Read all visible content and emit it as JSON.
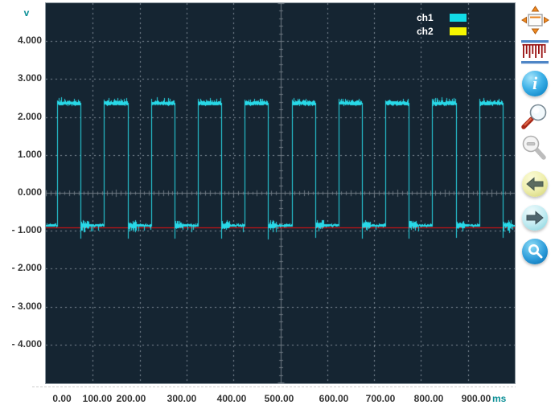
{
  "axes": {
    "y_unit": "v",
    "x_unit": "ms",
    "y_tick_labels": [
      "4.000",
      "3.000",
      "2.000",
      "1.000",
      "0.000",
      "- 1.000",
      "- 2.000",
      "- 3.000",
      "- 4.000"
    ],
    "y_tick_values": [
      4,
      3,
      2,
      1,
      0,
      -1,
      -2,
      -3,
      -4
    ],
    "x_tick_labels": [
      "0.00",
      "100.00",
      "200.00",
      "300.00",
      "400.00",
      "500.00",
      "600.00",
      "700.00",
      "800.00",
      "900.00"
    ],
    "x_tick_values": [
      0,
      100,
      200,
      300,
      400,
      500,
      600,
      700,
      800,
      900
    ]
  },
  "legend": {
    "items": [
      {
        "label": "ch1",
        "swatch_color": "#12dce8"
      },
      {
        "label": "ch2",
        "swatch_color": "#f6f600"
      }
    ]
  },
  "toolbar": {
    "icons": [
      {
        "name": "pan-window-icon"
      },
      {
        "name": "signal-samples-icon"
      },
      {
        "name": "info-icon",
        "glyph": "i"
      },
      {
        "name": "zoom-in-icon"
      },
      {
        "name": "zoom-out-icon"
      },
      {
        "name": "back-arrow-icon"
      },
      {
        "name": "forward-arrow-icon"
      },
      {
        "name": "search-zoom-icon"
      }
    ]
  },
  "chart_data": {
    "type": "line",
    "title": "",
    "xlabel": "ms",
    "ylabel": "v",
    "x_axis": {
      "range": [
        0,
        1000
      ],
      "ticks": [
        0,
        100,
        200,
        300,
        400,
        500,
        600,
        700,
        800,
        900
      ]
    },
    "y_axis": {
      "range": [
        -5,
        5
      ],
      "ticks": [
        4,
        3,
        2,
        1,
        0,
        -1,
        -2,
        -3,
        -4
      ]
    },
    "grid": {
      "style": "dashed",
      "color": "#97a1ab",
      "center_axes": "solid-with-ticks",
      "axis_color": "#6f7a84"
    },
    "plot_background": "#152532",
    "legend_position": "top-right-inside",
    "series": [
      {
        "name": "ch1",
        "display_color": "#28d9e8",
        "legend_color": "#12dce8",
        "waveform": "square",
        "period_ms": 100,
        "rise_at_ms": 25,
        "fall_at_ms": 75,
        "high_v": 2.36,
        "low_v": -0.86,
        "fall_undershoot_v": -1.18,
        "high_noise_vpp": 0.1,
        "low_noise_vpp": 0.06,
        "post_fall_noise_vpp": 0.2
      },
      {
        "name": "ch2",
        "display_color": "#f01010",
        "legend_color": "#f6f600",
        "waveform": "dc",
        "level_v": -0.92
      }
    ]
  }
}
